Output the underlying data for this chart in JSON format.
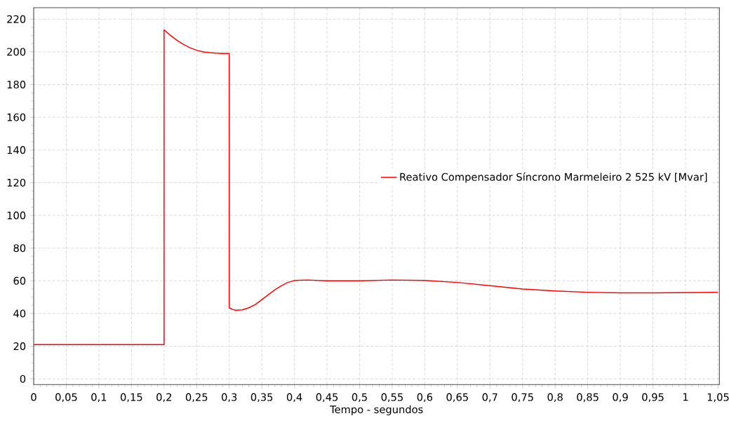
{
  "chart_data": {
    "type": "line",
    "xlabel": "Tempo - segundos",
    "xlim": [
      0,
      1.052
    ],
    "ylim": [
      -3.5,
      227
    ],
    "xticks": [
      0,
      {
        "value": 0.05,
        "label": "0,05"
      },
      {
        "value": 0.1,
        "label": "0,1"
      },
      {
        "value": 0.15,
        "label": "0,15"
      },
      {
        "value": 0.2,
        "label": "0,2"
      },
      {
        "value": 0.25,
        "label": "0,25"
      },
      {
        "value": 0.3,
        "label": "0,3"
      },
      {
        "value": 0.35,
        "label": "0,35"
      },
      {
        "value": 0.4,
        "label": "0,4"
      },
      {
        "value": 0.45,
        "label": "0,45"
      },
      {
        "value": 0.5,
        "label": "0,5"
      },
      {
        "value": 0.55,
        "label": "0,55"
      },
      {
        "value": 0.6,
        "label": "0,6"
      },
      {
        "value": 0.65,
        "label": "0,65"
      },
      {
        "value": 0.7,
        "label": "0,7"
      },
      {
        "value": 0.75,
        "label": "0,75"
      },
      {
        "value": 0.8,
        "label": "0,8"
      },
      {
        "value": 0.85,
        "label": "0,85"
      },
      {
        "value": 0.9,
        "label": "0,9"
      },
      {
        "value": 0.95,
        "label": "0,95"
      },
      1,
      {
        "value": 1.05,
        "label": "1,05"
      }
    ],
    "yticks": [
      0,
      20,
      40,
      60,
      80,
      100,
      120,
      140,
      160,
      180,
      200,
      220
    ],
    "grid": true,
    "legend": "right",
    "marker": "none",
    "line_style": "solid",
    "series": [
      {
        "name": "Reativo Compensador Síncrono Marmeleiro 2 525 kV [Mvar]",
        "color": "#ff0000",
        "x": [
          0,
          0.2,
          0.2,
          0.21,
          0.22,
          0.23,
          0.24,
          0.25,
          0.26,
          0.27,
          0.28,
          0.29,
          0.3,
          0.3,
          0.305,
          0.31,
          0.32,
          0.33,
          0.34,
          0.35,
          0.36,
          0.37,
          0.38,
          0.39,
          0.4,
          0.42,
          0.45,
          0.5,
          0.55,
          0.6,
          0.65,
          0.7,
          0.75,
          0.8,
          0.85,
          0.9,
          0.95,
          1,
          1.05
        ],
        "values": [
          21,
          21,
          213.5,
          210,
          207,
          204.5,
          202.5,
          201,
          200,
          199.5,
          199.2,
          199,
          199,
          43.5,
          42.5,
          42,
          42.2,
          43.5,
          45.5,
          48.5,
          51.5,
          54.5,
          57,
          59,
          60.2,
          60.5,
          60,
          60,
          60.5,
          60.2,
          59,
          57,
          55,
          53.8,
          53,
          52.6,
          52.6,
          52.8,
          53
        ]
      }
    ]
  }
}
